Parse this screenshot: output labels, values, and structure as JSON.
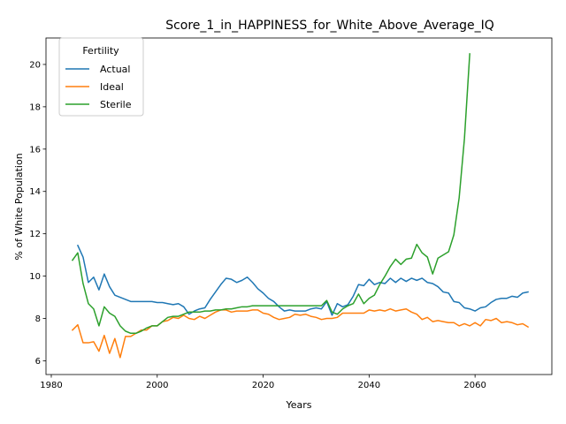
{
  "chart_data": {
    "type": "line",
    "title": "Score_1_in_HAPPINESS_for_White_Above_Average_IQ",
    "xlabel": "Years",
    "ylabel": "% of White Population",
    "xlim": [
      1979.0,
      2074.5
    ],
    "ylim": [
      5.35,
      21.25
    ],
    "xticks": [
      1980,
      2000,
      2020,
      2040,
      2060
    ],
    "yticks": [
      6,
      8,
      10,
      12,
      14,
      16,
      18,
      20
    ],
    "xtick_labels": [
      "1980",
      "2000",
      "2020",
      "2040",
      "2060"
    ],
    "ytick_labels": [
      "6",
      "8",
      "10",
      "12",
      "14",
      "16",
      "18",
      "20"
    ],
    "grid": false,
    "legend": {
      "title": "Fertility",
      "position": "upper left"
    },
    "colors": {
      "Actual": "#1f77b4",
      "Ideal": "#ff7f0e",
      "Sterile": "#2ca02c"
    },
    "series": [
      {
        "name": "Actual",
        "x": [
          1985,
          1986,
          1987,
          1988,
          1989,
          1990,
          1991,
          1992,
          1993,
          1994,
          1995,
          1996,
          1997,
          1998,
          1999,
          2000,
          2001,
          2002,
          2003,
          2004,
          2005,
          2006,
          2007,
          2008,
          2009,
          2010,
          2011,
          2012,
          2013,
          2014,
          2015,
          2016,
          2017,
          2018,
          2019,
          2020,
          2021,
          2022,
          2023,
          2024,
          2025,
          2026,
          2027,
          2028,
          2029,
          2030,
          2031,
          2032,
          2033,
          2034,
          2035,
          2036,
          2037,
          2038,
          2039,
          2040,
          2041,
          2042,
          2043,
          2044,
          2045,
          2046,
          2047,
          2048,
          2049,
          2050,
          2051,
          2052,
          2053,
          2054,
          2055,
          2056,
          2057,
          2058,
          2059,
          2060,
          2061,
          2062,
          2063,
          2064,
          2065,
          2066,
          2067,
          2068,
          2069,
          2070
        ],
        "values": [
          11.45,
          10.9,
          9.7,
          9.95,
          9.35,
          10.1,
          9.5,
          9.1,
          9.0,
          8.9,
          8.8,
          8.8,
          8.8,
          8.8,
          8.8,
          8.75,
          8.75,
          8.7,
          8.65,
          8.7,
          8.55,
          8.2,
          8.35,
          8.45,
          8.5,
          8.9,
          9.25,
          9.6,
          9.9,
          9.85,
          9.7,
          9.8,
          9.95,
          9.7,
          9.4,
          9.2,
          8.95,
          8.8,
          8.55,
          8.35,
          8.4,
          8.35,
          8.35,
          8.35,
          8.45,
          8.5,
          8.45,
          8.8,
          8.15,
          8.7,
          8.55,
          8.65,
          9.05,
          9.6,
          9.55,
          9.85,
          9.6,
          9.7,
          9.65,
          9.9,
          9.7,
          9.9,
          9.75,
          9.9,
          9.8,
          9.9,
          9.7,
          9.65,
          9.5,
          9.25,
          9.2,
          8.8,
          8.75,
          8.5,
          8.45,
          8.35,
          8.5,
          8.55,
          8.75,
          8.9,
          8.95,
          8.95,
          9.05,
          9.0,
          9.2,
          9.25
        ]
      },
      {
        "name": "Ideal",
        "x": [
          1984,
          1985,
          1986,
          1987,
          1988,
          1989,
          1990,
          1991,
          1992,
          1993,
          1994,
          1995,
          1996,
          1997,
          1998,
          1999,
          2000,
          2001,
          2002,
          2003,
          2004,
          2005,
          2006,
          2007,
          2008,
          2009,
          2010,
          2011,
          2012,
          2013,
          2014,
          2015,
          2016,
          2017,
          2018,
          2019,
          2020,
          2021,
          2022,
          2023,
          2024,
          2025,
          2026,
          2027,
          2028,
          2029,
          2030,
          2031,
          2032,
          2033,
          2034,
          2035,
          2036,
          2037,
          2038,
          2039,
          2040,
          2041,
          2042,
          2043,
          2044,
          2045,
          2046,
          2047,
          2048,
          2049,
          2050,
          2051,
          2052,
          2053,
          2054,
          2055,
          2056,
          2057,
          2058,
          2059,
          2060,
          2061,
          2062,
          2063,
          2064,
          2065,
          2066,
          2067,
          2068,
          2069,
          2070
        ],
        "values": [
          7.45,
          7.7,
          6.85,
          6.85,
          6.9,
          6.45,
          7.2,
          6.35,
          7.05,
          6.15,
          7.15,
          7.15,
          7.3,
          7.45,
          7.45,
          7.65,
          7.65,
          7.85,
          7.9,
          8.05,
          8.0,
          8.15,
          8.0,
          7.95,
          8.1,
          8.0,
          8.15,
          8.3,
          8.4,
          8.4,
          8.3,
          8.35,
          8.35,
          8.35,
          8.4,
          8.4,
          8.25,
          8.2,
          8.05,
          7.95,
          8.0,
          8.05,
          8.2,
          8.15,
          8.2,
          8.1,
          8.05,
          7.95,
          8.0,
          8.0,
          8.05,
          8.25,
          8.25,
          8.25,
          8.25,
          8.25,
          8.4,
          8.35,
          8.4,
          8.35,
          8.45,
          8.35,
          8.4,
          8.45,
          8.3,
          8.2,
          7.95,
          8.05,
          7.85,
          7.9,
          7.85,
          7.8,
          7.8,
          7.65,
          7.75,
          7.65,
          7.8,
          7.65,
          7.95,
          7.9,
          8.0,
          7.8,
          7.85,
          7.8,
          7.7,
          7.75,
          7.6
        ]
      },
      {
        "name": "Sterile",
        "x": [
          1984,
          1985,
          1986,
          1987,
          1988,
          1989,
          1990,
          1991,
          1992,
          1993,
          1994,
          1995,
          1996,
          1997,
          1998,
          1999,
          2000,
          2001,
          2002,
          2003,
          2004,
          2005,
          2006,
          2007,
          2008,
          2009,
          2010,
          2011,
          2012,
          2013,
          2014,
          2015,
          2016,
          2017,
          2018,
          2019,
          2020,
          2021,
          2022,
          2023,
          2024,
          2025,
          2026,
          2027,
          2028,
          2029,
          2030,
          2031,
          2032,
          2033,
          2034,
          2035,
          2036,
          2037,
          2038,
          2039,
          2040,
          2041,
          2042,
          2043,
          2044,
          2045,
          2046,
          2047,
          2048,
          2049,
          2050,
          2051,
          2052,
          2053,
          2054,
          2055,
          2056,
          2057,
          2058,
          2059
        ],
        "values": [
          10.75,
          11.1,
          9.65,
          8.7,
          8.45,
          7.65,
          8.55,
          8.25,
          8.1,
          7.65,
          7.4,
          7.3,
          7.3,
          7.4,
          7.55,
          7.65,
          7.65,
          7.85,
          8.05,
          8.1,
          8.1,
          8.2,
          8.3,
          8.3,
          8.3,
          8.35,
          8.35,
          8.4,
          8.4,
          8.45,
          8.45,
          8.5,
          8.55,
          8.55,
          8.6,
          8.6,
          8.6,
          8.6,
          8.6,
          8.6,
          8.6,
          8.6,
          8.6,
          8.6,
          8.6,
          8.6,
          8.6,
          8.6,
          8.85,
          8.3,
          8.2,
          8.45,
          8.6,
          8.7,
          9.15,
          8.7,
          8.95,
          9.1,
          9.6,
          10.0,
          10.45,
          10.8,
          10.55,
          10.8,
          10.85,
          11.5,
          11.1,
          10.9,
          10.1,
          10.85,
          11.0,
          11.15,
          11.95,
          13.7,
          16.5,
          20.5
        ]
      }
    ]
  }
}
